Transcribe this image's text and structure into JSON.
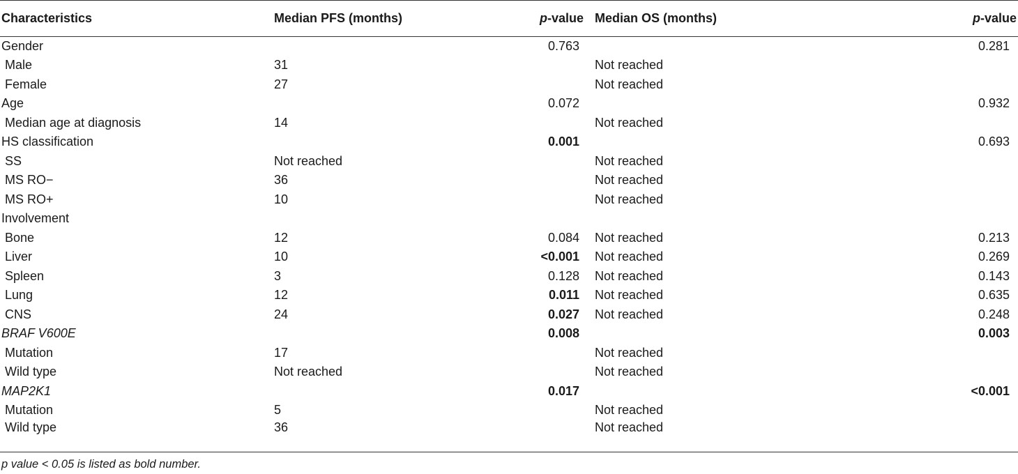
{
  "headers": [
    "Characteristics",
    "Median PFS (months)",
    "p",
    "-value",
    "Median OS (months)",
    "p",
    "-value"
  ],
  "rows": [
    {
      "label": "Gender",
      "sub": false,
      "italic": false,
      "pfs": "",
      "pfs_p": "0.763",
      "pfs_p_bold": false,
      "os": "",
      "os_p": "0.281",
      "os_p_bold": false
    },
    {
      "label": "Male",
      "sub": true,
      "italic": false,
      "pfs": "31",
      "pfs_p": "",
      "pfs_p_bold": false,
      "os": "Not reached",
      "os_p": "",
      "os_p_bold": false
    },
    {
      "label": "Female",
      "sub": true,
      "italic": false,
      "pfs": "27",
      "pfs_p": "",
      "pfs_p_bold": false,
      "os": "Not reached",
      "os_p": "",
      "os_p_bold": false
    },
    {
      "label": "Age",
      "sub": false,
      "italic": false,
      "pfs": "",
      "pfs_p": "0.072",
      "pfs_p_bold": false,
      "os": "",
      "os_p": "0.932",
      "os_p_bold": false
    },
    {
      "label": "Median age at diagnosis",
      "sub": true,
      "italic": false,
      "pfs": "14",
      "pfs_p": "",
      "pfs_p_bold": false,
      "os": "Not reached",
      "os_p": "",
      "os_p_bold": false
    },
    {
      "label": "HS classification",
      "sub": false,
      "italic": false,
      "pfs": "",
      "pfs_p": "0.001",
      "pfs_p_bold": true,
      "os": "",
      "os_p": "0.693",
      "os_p_bold": false
    },
    {
      "label": "SS",
      "sub": true,
      "italic": false,
      "pfs": "Not reached",
      "pfs_p": "",
      "pfs_p_bold": false,
      "os": "Not reached",
      "os_p": "",
      "os_p_bold": false
    },
    {
      "label": "MS RO−",
      "sub": true,
      "italic": false,
      "pfs": "36",
      "pfs_p": "",
      "pfs_p_bold": false,
      "os": "Not reached",
      "os_p": "",
      "os_p_bold": false
    },
    {
      "label": "MS RO+",
      "sub": true,
      "italic": false,
      "pfs": "10",
      "pfs_p": "",
      "pfs_p_bold": false,
      "os": "Not reached",
      "os_p": "",
      "os_p_bold": false
    },
    {
      "label": "Involvement",
      "sub": false,
      "italic": false,
      "pfs": "",
      "pfs_p": "",
      "pfs_p_bold": false,
      "os": "",
      "os_p": "",
      "os_p_bold": false
    },
    {
      "label": "Bone",
      "sub": true,
      "italic": false,
      "pfs": "12",
      "pfs_p": "0.084",
      "pfs_p_bold": false,
      "os": "Not reached",
      "os_p": "0.213",
      "os_p_bold": false
    },
    {
      "label": "Liver",
      "sub": true,
      "italic": false,
      "pfs": "10",
      "pfs_p": "<0.001",
      "pfs_p_bold": true,
      "os": "Not reached",
      "os_p": "0.269",
      "os_p_bold": false
    },
    {
      "label": "Spleen",
      "sub": true,
      "italic": false,
      "pfs": "3",
      "pfs_p": "0.128",
      "pfs_p_bold": false,
      "os": "Not reached",
      "os_p": "0.143",
      "os_p_bold": false
    },
    {
      "label": "Lung",
      "sub": true,
      "italic": false,
      "pfs": "12",
      "pfs_p": "0.011",
      "pfs_p_bold": true,
      "os": "Not reached",
      "os_p": "0.635",
      "os_p_bold": false
    },
    {
      "label": "CNS",
      "sub": true,
      "italic": false,
      "pfs": "24",
      "pfs_p": "0.027",
      "pfs_p_bold": true,
      "os": "Not reached",
      "os_p": "0.248",
      "os_p_bold": false
    },
    {
      "label": "BRAF V600E",
      "sub": false,
      "italic": true,
      "pfs": "",
      "pfs_p": "0.008",
      "pfs_p_bold": true,
      "os": "",
      "os_p": "0.003",
      "os_p_bold": true
    },
    {
      "label": "Mutation",
      "sub": true,
      "italic": false,
      "pfs": "17",
      "pfs_p": "",
      "pfs_p_bold": false,
      "os": "Not reached",
      "os_p": "",
      "os_p_bold": false
    },
    {
      "label": "Wild type",
      "sub": true,
      "italic": false,
      "pfs": "Not reached",
      "pfs_p": "",
      "pfs_p_bold": false,
      "os": "Not reached",
      "os_p": "",
      "os_p_bold": false
    },
    {
      "label": "MAP2K1",
      "sub": false,
      "italic": true,
      "pfs": "",
      "pfs_p": "0.017",
      "pfs_p_bold": true,
      "os": "",
      "os_p": "<0.001",
      "os_p_bold": true
    },
    {
      "label": "Mutation",
      "sub": true,
      "italic": false,
      "pfs": "5",
      "pfs_p": "",
      "pfs_p_bold": false,
      "os": "Not reached",
      "os_p": "",
      "os_p_bold": false
    },
    {
      "label": "Wild type",
      "sub": true,
      "italic": false,
      "pfs": "36",
      "pfs_p": "",
      "pfs_p_bold": false,
      "os": "Not reached",
      "os_p": "",
      "os_p_bold": false
    }
  ],
  "footnote": "p value < 0.05 is listed as bold number."
}
